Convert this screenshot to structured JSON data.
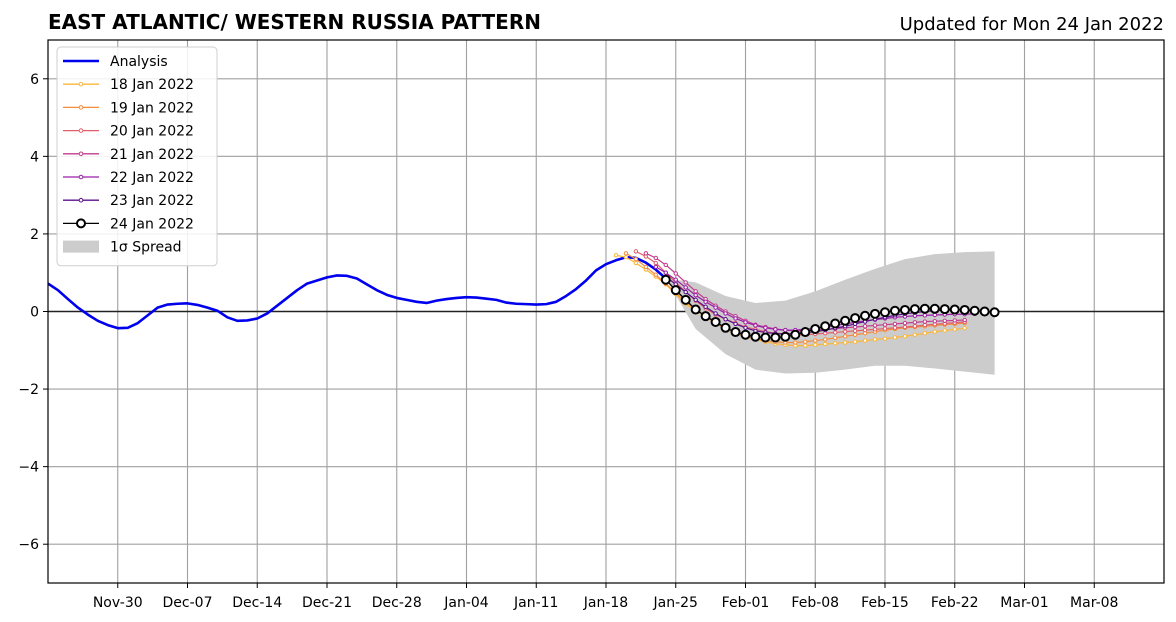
{
  "chart_data": {
    "type": "line",
    "title": "EAST ATLANTIC/ WESTERN RUSSIA PATTERN",
    "subtitle": "Updated for Mon 24 Jan 2022",
    "xlabel": "",
    "ylabel": "",
    "x_range_days": [
      "2021-11-23",
      "2022-03-15"
    ],
    "ylim": [
      -7,
      7
    ],
    "y_ticks": [
      -6,
      -4,
      -2,
      0,
      2,
      4,
      6
    ],
    "y_tick_labels": [
      "−6",
      "−4",
      "−2",
      "0",
      "2",
      "4",
      "6"
    ],
    "x_ticks": [
      "2021-11-30",
      "2021-12-07",
      "2021-12-14",
      "2021-12-21",
      "2021-12-28",
      "2022-01-04",
      "2022-01-11",
      "2022-01-18",
      "2022-01-25",
      "2022-02-01",
      "2022-02-08",
      "2022-02-15",
      "2022-02-22",
      "2022-03-01",
      "2022-03-08"
    ],
    "x_tick_labels": [
      "Nov-30",
      "Dec-07",
      "Dec-14",
      "Dec-21",
      "Dec-28",
      "Jan-04",
      "Jan-11",
      "Jan-18",
      "Jan-25",
      "Feb-01",
      "Feb-08",
      "Feb-15",
      "Feb-22",
      "Mar-01",
      "Mar-08"
    ],
    "grid": true,
    "legend_position": "top-left",
    "analysis": {
      "name": "Analysis",
      "color": "#0000ee",
      "points": [
        [
          "2021-11-23",
          0.72
        ],
        [
          "2021-11-24",
          0.55
        ],
        [
          "2021-11-25",
          0.32
        ],
        [
          "2021-11-26",
          0.1
        ],
        [
          "2021-11-27",
          -0.08
        ],
        [
          "2021-11-28",
          -0.24
        ],
        [
          "2021-11-29",
          -0.35
        ],
        [
          "2021-11-30",
          -0.43
        ],
        [
          "2021-12-01",
          -0.42
        ],
        [
          "2021-12-02",
          -0.3
        ],
        [
          "2021-12-03",
          -0.1
        ],
        [
          "2021-12-04",
          0.1
        ],
        [
          "2021-12-05",
          0.18
        ],
        [
          "2021-12-06",
          0.2
        ],
        [
          "2021-12-07",
          0.21
        ],
        [
          "2021-12-08",
          0.17
        ],
        [
          "2021-12-09",
          0.1
        ],
        [
          "2021-12-10",
          0.02
        ],
        [
          "2021-12-11",
          -0.15
        ],
        [
          "2021-12-12",
          -0.24
        ],
        [
          "2021-12-13",
          -0.23
        ],
        [
          "2021-12-14",
          -0.18
        ],
        [
          "2021-12-15",
          -0.05
        ],
        [
          "2021-12-16",
          0.15
        ],
        [
          "2021-12-17",
          0.35
        ],
        [
          "2021-12-18",
          0.55
        ],
        [
          "2021-12-19",
          0.72
        ],
        [
          "2021-12-20",
          0.8
        ],
        [
          "2021-12-21",
          0.88
        ],
        [
          "2021-12-22",
          0.93
        ],
        [
          "2021-12-23",
          0.92
        ],
        [
          "2021-12-24",
          0.85
        ],
        [
          "2021-12-25",
          0.7
        ],
        [
          "2021-12-26",
          0.55
        ],
        [
          "2021-12-27",
          0.43
        ],
        [
          "2021-12-28",
          0.35
        ],
        [
          "2021-12-29",
          0.3
        ],
        [
          "2021-12-30",
          0.25
        ],
        [
          "2021-12-31",
          0.22
        ],
        [
          "2022-01-01",
          0.28
        ],
        [
          "2022-01-02",
          0.32
        ],
        [
          "2022-01-03",
          0.35
        ],
        [
          "2022-01-04",
          0.37
        ],
        [
          "2022-01-05",
          0.36
        ],
        [
          "2022-01-06",
          0.33
        ],
        [
          "2022-01-07",
          0.3
        ],
        [
          "2022-01-08",
          0.23
        ],
        [
          "2022-01-09",
          0.2
        ],
        [
          "2022-01-10",
          0.19
        ],
        [
          "2022-01-11",
          0.18
        ],
        [
          "2022-01-12",
          0.19
        ],
        [
          "2022-01-13",
          0.25
        ],
        [
          "2022-01-14",
          0.4
        ],
        [
          "2022-01-15",
          0.58
        ],
        [
          "2022-01-16",
          0.8
        ],
        [
          "2022-01-17",
          1.06
        ],
        [
          "2022-01-18",
          1.22
        ],
        [
          "2022-01-19",
          1.32
        ],
        [
          "2022-01-20",
          1.4
        ],
        [
          "2022-01-21",
          1.38
        ],
        [
          "2022-01-22",
          1.26
        ],
        [
          "2022-01-23",
          1.08
        ],
        [
          "2022-01-24",
          0.85
        ]
      ]
    },
    "spread": {
      "name": "1σ Spread",
      "color": "#cccccc",
      "x": [
        "2022-01-24",
        "2022-01-27",
        "2022-01-30",
        "2022-02-02",
        "2022-02-05",
        "2022-02-08",
        "2022-02-11",
        "2022-02-14",
        "2022-02-17",
        "2022-02-20",
        "2022-02-23",
        "2022-02-26"
      ],
      "upper": [
        0.85,
        0.75,
        0.4,
        0.22,
        0.28,
        0.52,
        0.82,
        1.1,
        1.35,
        1.48,
        1.53,
        1.55
      ],
      "lower": [
        0.85,
        -0.45,
        -1.1,
        -1.5,
        -1.6,
        -1.58,
        -1.5,
        -1.4,
        -1.4,
        -1.47,
        -1.55,
        -1.63
      ]
    },
    "forecasts": [
      {
        "name": "18 Jan 2022",
        "color": "#fbb63a",
        "start": "2022-01-19",
        "points": [
          1.45,
          1.4,
          1.25,
          1.08,
          0.9,
          0.7,
          0.45,
          0.2,
          0.02,
          -0.15,
          -0.3,
          -0.45,
          -0.55,
          -0.65,
          -0.72,
          -0.78,
          -0.83,
          -0.86,
          -0.88,
          -0.88,
          -0.86,
          -0.84,
          -0.82,
          -0.8,
          -0.78,
          -0.75,
          -0.72,
          -0.7,
          -0.67,
          -0.64,
          -0.6,
          -0.56,
          -0.52,
          -0.49,
          -0.46,
          -0.43
        ]
      },
      {
        "name": "19 Jan 2022",
        "color": "#f58c3c",
        "start": "2022-01-20",
        "points": [
          1.5,
          1.35,
          1.15,
          0.95,
          0.72,
          0.48,
          0.25,
          0.05,
          -0.12,
          -0.3,
          -0.45,
          -0.55,
          -0.65,
          -0.7,
          -0.75,
          -0.78,
          -0.8,
          -0.8,
          -0.78,
          -0.75,
          -0.72,
          -0.68,
          -0.64,
          -0.6,
          -0.56,
          -0.52,
          -0.48,
          -0.45,
          -0.42,
          -0.4,
          -0.38,
          -0.36,
          -0.34,
          -0.32,
          -0.3
        ]
      },
      {
        "name": "20 Jan 2022",
        "color": "#e05f6b",
        "start": "2022-01-21",
        "points": [
          1.55,
          1.42,
          1.25,
          1.0,
          0.75,
          0.5,
          0.28,
          0.08,
          -0.08,
          -0.2,
          -0.3,
          -0.4,
          -0.46,
          -0.52,
          -0.56,
          -0.58,
          -0.6,
          -0.6,
          -0.58,
          -0.56,
          -0.54,
          -0.52,
          -0.5,
          -0.48,
          -0.46,
          -0.44,
          -0.42,
          -0.4,
          -0.38,
          -0.35,
          -0.33,
          -0.31,
          -0.29,
          -0.27
        ]
      },
      {
        "name": "21 Jan 2022",
        "color": "#c13c8e",
        "start": "2022-01-22",
        "points": [
          1.5,
          1.38,
          1.2,
          0.98,
          0.75,
          0.52,
          0.32,
          0.15,
          0.0,
          -0.12,
          -0.24,
          -0.34,
          -0.4,
          -0.45,
          -0.48,
          -0.5,
          -0.5,
          -0.48,
          -0.46,
          -0.44,
          -0.42,
          -0.4,
          -0.38,
          -0.36,
          -0.34,
          -0.32,
          -0.3,
          -0.28,
          -0.26,
          -0.25,
          -0.24,
          -0.23,
          -0.22
        ]
      },
      {
        "name": "22 Jan 2022",
        "color": "#9a1fa8",
        "start": "2022-01-23",
        "points": [
          1.15,
          1.0,
          0.82,
          0.62,
          0.42,
          0.25,
          0.1,
          -0.05,
          -0.18,
          -0.28,
          -0.36,
          -0.42,
          -0.46,
          -0.48,
          -0.48,
          -0.46,
          -0.43,
          -0.4,
          -0.36,
          -0.32,
          -0.28,
          -0.24,
          -0.21,
          -0.18,
          -0.15,
          -0.13,
          -0.11,
          -0.1,
          -0.09,
          -0.08,
          -0.07,
          -0.07,
          -0.06
        ]
      },
      {
        "name": "23 Jan 2022",
        "color": "#5b0f8c",
        "start": "2022-01-24",
        "points": [
          0.9,
          0.7,
          0.5,
          0.3,
          0.12,
          -0.05,
          -0.2,
          -0.32,
          -0.42,
          -0.5,
          -0.54,
          -0.57,
          -0.58,
          -0.57,
          -0.55,
          -0.52,
          -0.48,
          -0.43,
          -0.38,
          -0.32,
          -0.26,
          -0.2,
          -0.15,
          -0.1,
          -0.06,
          -0.03,
          0.0,
          0.02,
          0.03,
          0.04,
          0.04,
          0.04
        ]
      }
    ],
    "latest": {
      "name": "24 Jan 2022",
      "color": "#000000",
      "start": "2022-01-24",
      "points": [
        0.82,
        0.55,
        0.3,
        0.05,
        -0.12,
        -0.27,
        -0.42,
        -0.53,
        -0.6,
        -0.65,
        -0.67,
        -0.67,
        -0.65,
        -0.6,
        -0.53,
        -0.45,
        -0.38,
        -0.31,
        -0.24,
        -0.17,
        -0.11,
        -0.06,
        -0.02,
        0.02,
        0.04,
        0.06,
        0.07,
        0.07,
        0.06,
        0.05,
        0.04,
        0.02,
        0.0,
        -0.02
      ]
    },
    "legend": [
      {
        "label": "Analysis",
        "kind": "thick-line",
        "color": "#0000ee"
      },
      {
        "label": "18 Jan 2022",
        "kind": "small-marker",
        "color": "#fbb63a"
      },
      {
        "label": "19 Jan 2022",
        "kind": "small-marker",
        "color": "#f58c3c"
      },
      {
        "label": "20 Jan 2022",
        "kind": "small-marker",
        "color": "#e05f6b"
      },
      {
        "label": "21 Jan 2022",
        "kind": "small-marker",
        "color": "#c13c8e"
      },
      {
        "label": "22 Jan 2022",
        "kind": "small-marker",
        "color": "#9a1fa8"
      },
      {
        "label": "23 Jan 2022",
        "kind": "small-marker",
        "color": "#5b0f8c"
      },
      {
        "label": "24 Jan 2022",
        "kind": "big-marker",
        "color": "#000000"
      },
      {
        "label": "1σ Spread",
        "kind": "patch",
        "color": "#cccccc"
      }
    ]
  }
}
